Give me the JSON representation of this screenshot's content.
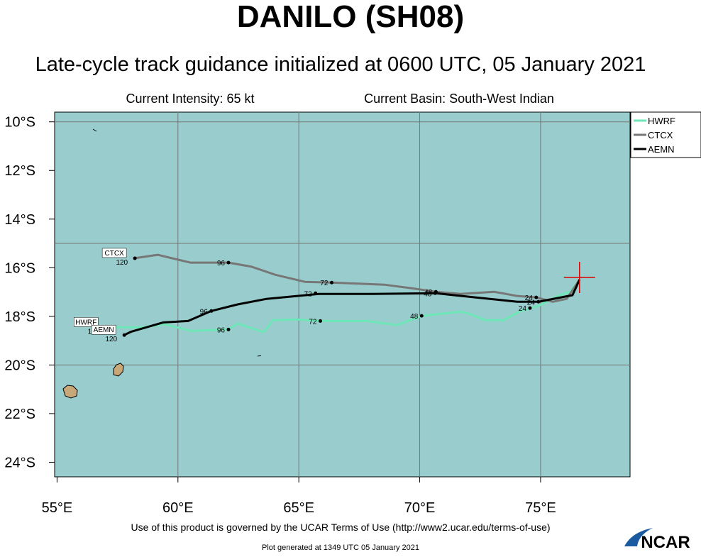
{
  "chart_data": {
    "type": "line",
    "title": "DANILO (SH08)",
    "subtitle": "Late-cycle track guidance initialized at 0600 UTC, 05 January 2021",
    "intensity": "Current Intensity: 65 kt",
    "basin": "Current Basin: South-West Indian",
    "terms": "Use of this product is governed by the UCAR Terms of Use (http://www2.ucar.edu/terms-of-use)",
    "generated": "Plot generated at 1349 UTC   05 January 2021",
    "logo": "NCAR",
    "xlim": [
      54.9,
      78.7
    ],
    "ylim": [
      -24.6,
      -9.6
    ],
    "xticks": [
      {
        "value": 55,
        "label": "55°E"
      },
      {
        "value": 60,
        "label": "60°E"
      },
      {
        "value": 65,
        "label": "65°E"
      },
      {
        "value": 70,
        "label": "70°E"
      },
      {
        "value": 75,
        "label": "75°E"
      }
    ],
    "yticks": [
      {
        "value": -10,
        "label": "10°S"
      },
      {
        "value": -12,
        "label": "12°S"
      },
      {
        "value": -14,
        "label": "14°S"
      },
      {
        "value": -16,
        "label": "16°S"
      },
      {
        "value": -18,
        "label": "18°S"
      },
      {
        "value": -20,
        "label": "20°S"
      },
      {
        "value": -22,
        "label": "22°S"
      },
      {
        "value": -24,
        "label": "24°S"
      }
    ],
    "xgrid": [
      60,
      65,
      70,
      75
    ],
    "ygrid": [
      -10,
      -15,
      -20
    ],
    "current": {
      "x": 76.61,
      "y": -16.4
    },
    "series": [
      {
        "name": "HWRF",
        "color": "#6ee6b8",
        "x": [
          76.61,
          76.23,
          75.79,
          74.91,
          74.18,
          73.45,
          72.72,
          72.04,
          71.69,
          70.08,
          69.06,
          67.83,
          65.89,
          64.96,
          63.93,
          63.55,
          62.47,
          62.09,
          60.56,
          59.45,
          58.51,
          57.05
        ],
        "y": [
          -16.49,
          -16.99,
          -17.13,
          -17.57,
          -17.78,
          -18.16,
          -18.16,
          -17.89,
          -17.81,
          -17.98,
          -18.36,
          -18.19,
          -18.19,
          -18.13,
          -18.16,
          -18.65,
          -18.3,
          -18.54,
          -18.6,
          -18.33,
          -18.45,
          -18.45
        ],
        "markers": [
          {
            "hour": 24,
            "x": 74.56,
            "y": -17.66
          },
          {
            "hour": 48,
            "x": 70.08,
            "y": -17.98
          },
          {
            "hour": 72,
            "x": 65.89,
            "y": -18.19
          },
          {
            "hour": 96,
            "x": 62.09,
            "y": -18.54
          },
          {
            "hour": 120,
            "x": 57.05,
            "y": -18.45
          }
        ]
      },
      {
        "name": "CTCX",
        "color": "#777777",
        "x": [
          76.61,
          76.08,
          75.5,
          74.82,
          74.03,
          73.07,
          71.69,
          70.67,
          69.64,
          68.56,
          66.36,
          65.25,
          64.02,
          63.05,
          62.09,
          60.51,
          59.16,
          58.22
        ],
        "y": [
          -16.49,
          -17.28,
          -17.4,
          -17.22,
          -17.16,
          -16.99,
          -17.08,
          -16.99,
          -16.84,
          -16.7,
          -16.61,
          -16.58,
          -16.29,
          -15.96,
          -15.79,
          -15.79,
          -15.47,
          -15.61
        ],
        "markers": [
          {
            "hour": 24,
            "x": 74.82,
            "y": -17.22
          },
          {
            "hour": 48,
            "x": 70.67,
            "y": -16.99
          },
          {
            "hour": 72,
            "x": 66.36,
            "y": -16.61
          },
          {
            "hour": 96,
            "x": 62.09,
            "y": -15.79
          },
          {
            "hour": 120,
            "x": 58.22,
            "y": -15.61
          }
        ]
      },
      {
        "name": "AEMN",
        "color": "#000000",
        "x": [
          76.61,
          76.32,
          74.91,
          74.03,
          70.67,
          68.03,
          65.83,
          63.67,
          62.47,
          61.38,
          60.42,
          59.39,
          58.07,
          57.78
        ],
        "y": [
          -16.49,
          -17.13,
          -17.4,
          -17.4,
          -17.05,
          -17.08,
          -17.08,
          -17.28,
          -17.51,
          -17.78,
          -18.19,
          -18.25,
          -18.63,
          -18.77
        ],
        "markers": [
          {
            "hour": 24,
            "x": 74.91,
            "y": -17.4
          },
          {
            "hour": 48,
            "x": 70.64,
            "y": -17.05
          },
          {
            "hour": 72,
            "x": 65.69,
            "y": -17.05
          },
          {
            "hour": 96,
            "x": 61.38,
            "y": -17.78
          },
          {
            "hour": 120,
            "x": 57.78,
            "y": -18.77
          }
        ]
      }
    ]
  }
}
